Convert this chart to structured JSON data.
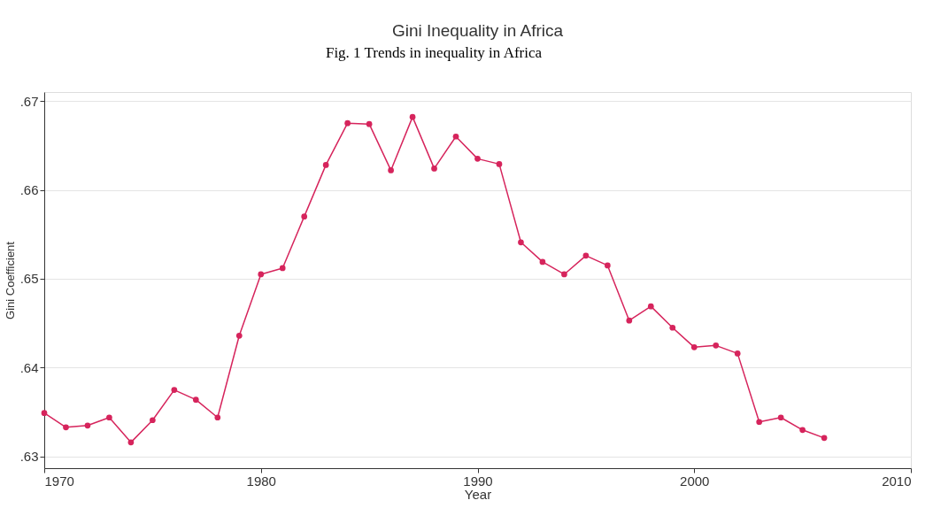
{
  "chart_data": {
    "type": "line",
    "title": "Gini Inequality in Africa",
    "xlabel": "Year",
    "ylabel": "Gini Coefficient",
    "annotations": [
      "Fig. 1 Trends in inequality in Africa"
    ],
    "x": [
      1970,
      1971,
      1972,
      1973,
      1974,
      1975,
      1976,
      1977,
      1978,
      1979,
      1980,
      1981,
      1982,
      1983,
      1984,
      1985,
      1986,
      1987,
      1988,
      1989,
      1990,
      1991,
      1992,
      1993,
      1994,
      1995,
      1996,
      1997,
      1998,
      1999,
      2000,
      2001,
      2002,
      2003,
      2004,
      2005,
      2006
    ],
    "series": [
      {
        "color": "#d6245c",
        "values": [
          0.6349,
          0.6333,
          0.6335,
          0.6344,
          0.6316,
          0.6341,
          0.6375,
          0.6364,
          0.6344,
          0.6436,
          0.6505,
          0.6512,
          0.657,
          0.6628,
          0.6675,
          0.6674,
          0.6622,
          0.6682,
          0.6624,
          0.666,
          0.6635,
          0.6629,
          0.6541,
          0.6519,
          0.6505,
          0.6526,
          0.6515,
          0.6453,
          0.6469,
          0.6445,
          0.6423,
          0.6425,
          0.6416,
          0.6339,
          0.6344,
          0.633,
          0.6321
        ]
      }
    ],
    "xlim": [
      1970,
      2010
    ],
    "xticks": [
      1970,
      1980,
      1990,
      2000,
      2010
    ],
    "ylim": [
      0.6287,
      0.671
    ],
    "yticks": [
      {
        "value": 0.63,
        "label": ".63"
      },
      {
        "value": 0.64,
        "label": ".64"
      },
      {
        "value": 0.65,
        "label": ".65"
      },
      {
        "value": 0.66,
        "label": ".66"
      },
      {
        "value": 0.67,
        "label": ".67"
      }
    ],
    "grid": "y",
    "marker": "circle",
    "line_style": "solid"
  }
}
